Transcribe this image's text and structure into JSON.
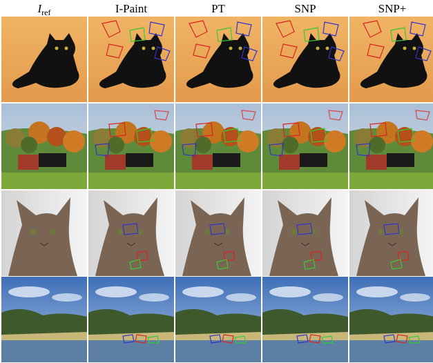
{
  "header": {
    "columns": [
      {
        "symbol": "I",
        "subscript": "ref"
      },
      {
        "label": "I-Paint"
      },
      {
        "label": "PT"
      },
      {
        "label": "SNP"
      },
      {
        "label": "SNP+"
      }
    ]
  }
}
